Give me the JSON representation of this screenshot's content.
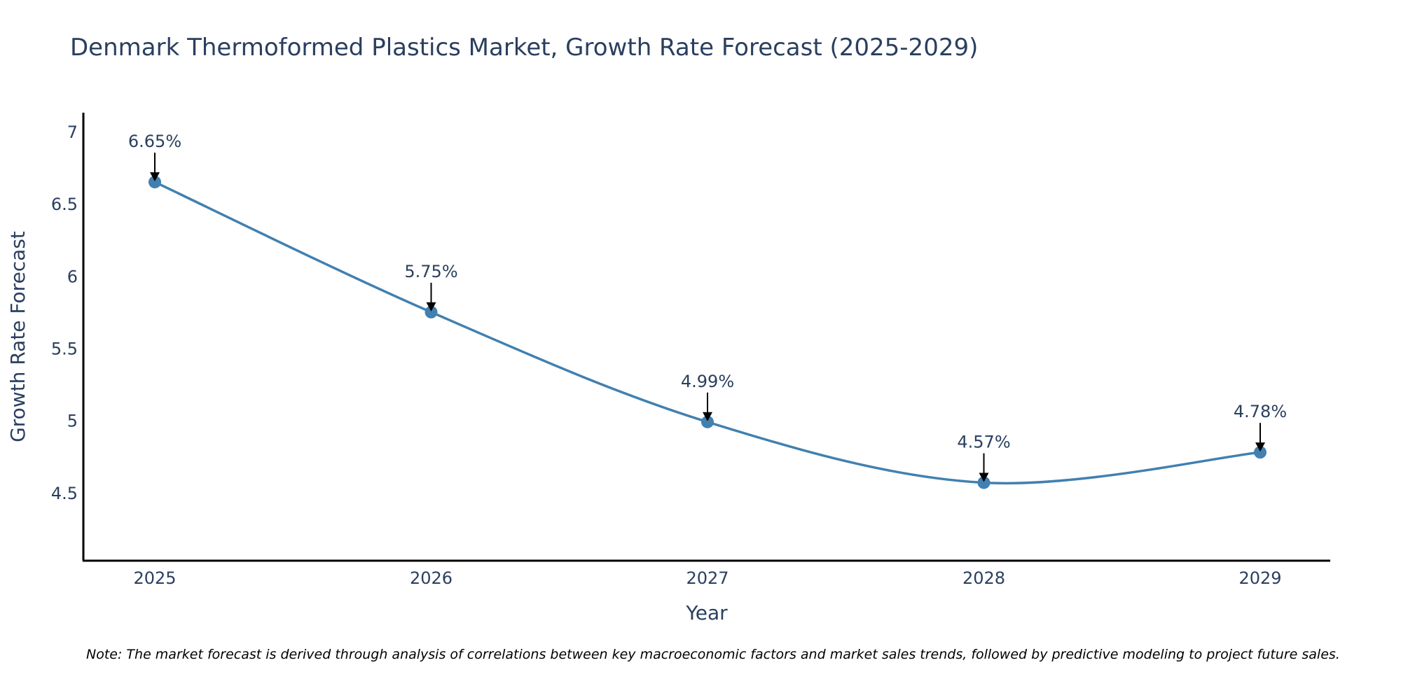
{
  "chart_data": {
    "type": "line",
    "title": "Denmark Thermoformed Plastics Market, Growth Rate Forecast (2025-2029)",
    "xlabel": "Year",
    "ylabel": "Growth Rate Forecast",
    "categories": [
      "2025",
      "2026",
      "2027",
      "2028",
      "2029"
    ],
    "series": [
      {
        "name": "Growth Rate Forecast",
        "values": [
          6.65,
          5.75,
          4.99,
          4.57,
          4.78
        ],
        "data_labels": [
          "6.65%",
          "5.75%",
          "4.99%",
          "4.57%",
          "4.78%"
        ]
      }
    ],
    "ylim": [
      4.03,
      7.13
    ],
    "yticks": [
      4.5,
      5,
      5.5,
      6,
      6.5,
      7
    ],
    "ytick_labels": [
      "4.5",
      "5",
      "5.5",
      "6",
      "6.5",
      "7"
    ],
    "grid": false,
    "line_shape": "spline",
    "line_color": "#4180b0",
    "marker_color": "#4180b0",
    "annotation_arrow_color": "#000000",
    "axis_color": "#000000",
    "note": "Note: The market forecast is derived through analysis of correlations between key macroeconomic factors and market sales trends, followed by predictive modeling to project future sales."
  }
}
